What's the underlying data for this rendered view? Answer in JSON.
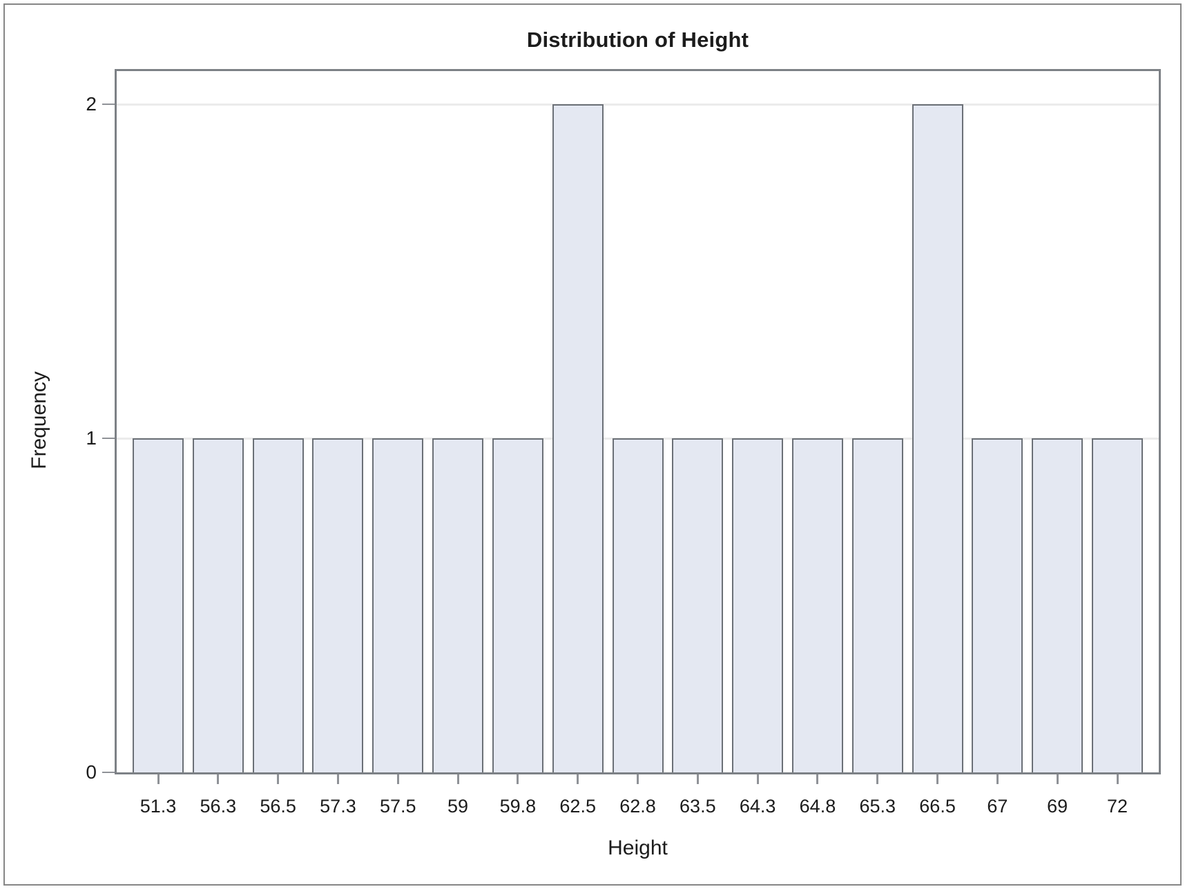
{
  "figure": {
    "title": "Distribution of Height"
  },
  "chart_data": {
    "type": "bar",
    "title": "Distribution of Height",
    "xlabel": "Height",
    "ylabel": "Frequency",
    "categories": [
      "51.3",
      "56.3",
      "56.5",
      "57.3",
      "57.5",
      "59",
      "59.8",
      "62.5",
      "62.8",
      "63.5",
      "64.3",
      "64.8",
      "65.3",
      "66.5",
      "67",
      "69",
      "72"
    ],
    "values": [
      1,
      1,
      1,
      1,
      1,
      1,
      1,
      2,
      1,
      1,
      1,
      1,
      1,
      2,
      1,
      1,
      1
    ],
    "yticks": [
      "0",
      "1",
      "2"
    ],
    "ylim": [
      0,
      2.1
    ],
    "grid": "horizontal-at-yticks",
    "legend": "none",
    "colors": {
      "bar_fill": "#e4e8f2",
      "bar_border": "#6b7077",
      "frame": "#7d8186",
      "gridline": "#ebebeb",
      "tick": "#8f9297",
      "text": "#1c1c1c",
      "outer_border": "#868686"
    }
  }
}
